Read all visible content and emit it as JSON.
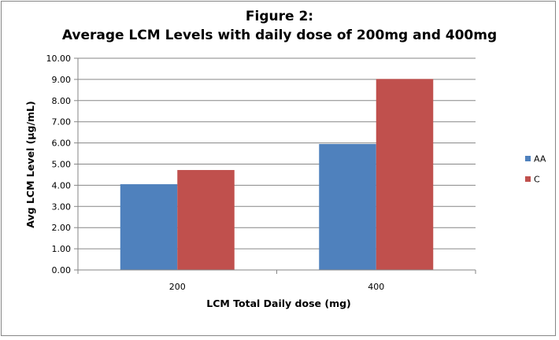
{
  "chart_data": {
    "type": "bar",
    "title_line1": "Figure 2:",
    "title_line2": "Average LCM Levels with daily dose of 200mg and 400mg",
    "xlabel": "LCM Total Daily dose (mg)",
    "ylabel": "Avg LCM Level (µg/mL)",
    "categories": [
      "200",
      "400"
    ],
    "series": [
      {
        "name": "AA",
        "color": "#4F81BD",
        "values": [
          4.05,
          5.95
        ]
      },
      {
        "name": "C",
        "color": "#C0504D",
        "values": [
          4.72,
          9.02
        ]
      }
    ],
    "ylim": [
      0,
      10
    ],
    "yticks": [
      "0.00",
      "1.00",
      "2.00",
      "3.00",
      "4.00",
      "5.00",
      "6.00",
      "7.00",
      "8.00",
      "9.00",
      "10.00"
    ],
    "grid": true,
    "legend_position": "right"
  }
}
